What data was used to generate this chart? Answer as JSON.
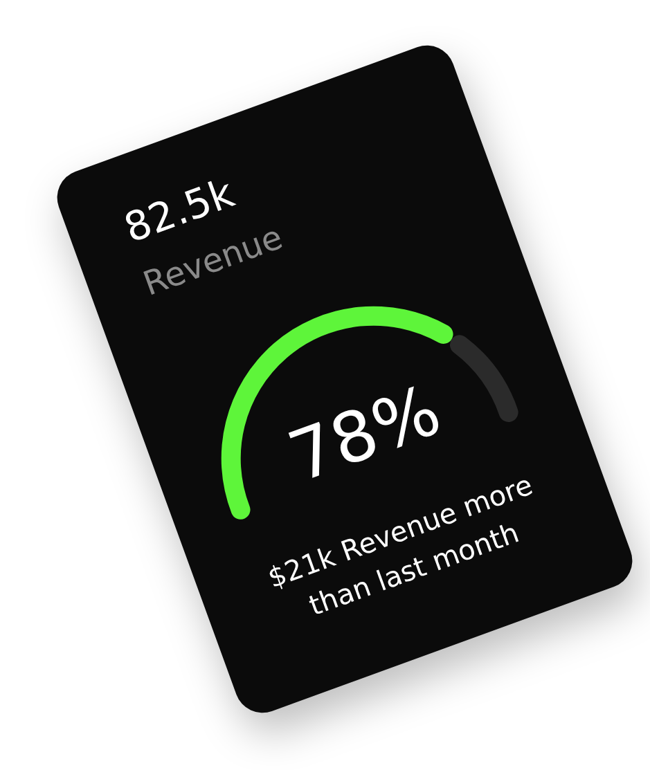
{
  "chart_data": {
    "type": "donut",
    "title": "82.5k",
    "subtitle": "Revenue",
    "categories": [
      null,
      null
    ],
    "values": [
      78,
      22
    ],
    "colors": [
      "#5ef53a",
      "#2b2b2b"
    ],
    "value_labels": [
      "78%",
      null
    ],
    "annotations": [
      "$21k Revenue more than last month"
    ]
  }
}
